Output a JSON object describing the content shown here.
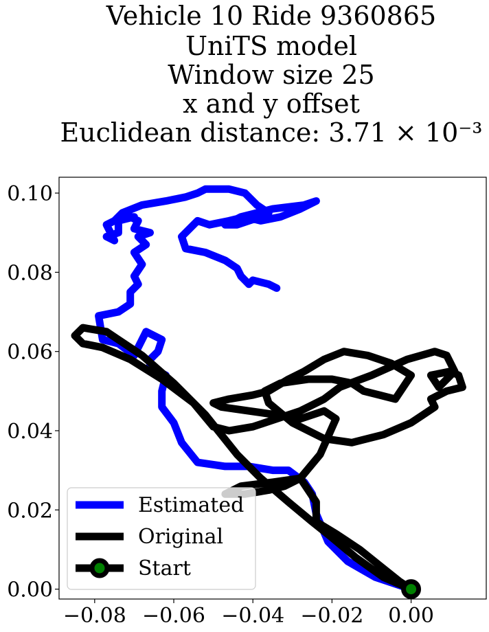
{
  "chart_data": {
    "type": "line",
    "title_lines": [
      "Vehicle 10 Ride 9360865",
      "UniTS model",
      "Window size 25",
      "x and y offset",
      "Euclidean distance: 3.71 × 10⁻³"
    ],
    "xlabel": "",
    "ylabel": "",
    "xlim": [
      -0.089,
      0.019
    ],
    "ylim": [
      -0.0025,
      0.104
    ],
    "xticks": [
      -0.08,
      -0.06,
      -0.04,
      -0.02,
      0.0
    ],
    "xtick_labels": [
      "−0.08",
      "−0.06",
      "−0.04",
      "−0.02",
      "0.00"
    ],
    "yticks": [
      0.0,
      0.02,
      0.04,
      0.06,
      0.08,
      0.1
    ],
    "ytick_labels": [
      "0.00",
      "0.02",
      "0.04",
      "0.06",
      "0.08",
      "0.10"
    ],
    "grid": false,
    "legend_position": "lower-left",
    "series": [
      {
        "name": "Estimated",
        "color": "#0000ff",
        "x": [
          0.0,
          -0.009,
          -0.016,
          -0.021,
          -0.024,
          -0.025,
          -0.027,
          -0.031,
          -0.035,
          -0.041,
          -0.047,
          -0.054,
          -0.058,
          -0.06,
          -0.063,
          -0.063,
          -0.062,
          -0.066,
          -0.066,
          -0.064,
          -0.063,
          -0.067,
          -0.07,
          -0.074,
          -0.078,
          -0.079,
          -0.074,
          -0.071,
          -0.071,
          -0.069,
          -0.07,
          -0.068,
          -0.07,
          -0.067,
          -0.069,
          -0.066,
          -0.07,
          -0.069,
          -0.071,
          -0.07,
          -0.074,
          -0.074,
          -0.077,
          -0.075,
          -0.077,
          -0.075,
          -0.073,
          -0.068,
          -0.062,
          -0.057,
          -0.054,
          -0.052,
          -0.046,
          -0.042,
          -0.039,
          -0.036,
          -0.038,
          -0.041,
          -0.044,
          -0.047,
          -0.043,
          -0.035,
          -0.027,
          -0.024,
          -0.028,
          -0.033,
          -0.038,
          -0.042,
          -0.046,
          -0.051,
          -0.054,
          -0.058,
          -0.057,
          -0.052,
          -0.047,
          -0.044,
          -0.043,
          -0.041,
          -0.04,
          -0.036,
          -0.034
        ],
        "y": [
          0.0,
          0.003,
          0.007,
          0.012,
          0.019,
          0.024,
          0.027,
          0.03,
          0.03,
          0.031,
          0.031,
          0.032,
          0.037,
          0.042,
          0.046,
          0.05,
          0.054,
          0.056,
          0.058,
          0.06,
          0.063,
          0.065,
          0.059,
          0.062,
          0.063,
          0.069,
          0.07,
          0.072,
          0.075,
          0.077,
          0.079,
          0.082,
          0.085,
          0.087,
          0.089,
          0.09,
          0.091,
          0.093,
          0.094,
          0.094,
          0.093,
          0.09,
          0.089,
          0.088,
          0.092,
          0.093,
          0.095,
          0.097,
          0.098,
          0.099,
          0.1,
          0.101,
          0.101,
          0.1,
          0.097,
          0.095,
          0.094,
          0.093,
          0.092,
          0.092,
          0.094,
          0.096,
          0.097,
          0.098,
          0.096,
          0.094,
          0.093,
          0.094,
          0.093,
          0.092,
          0.093,
          0.089,
          0.086,
          0.085,
          0.083,
          0.081,
          0.079,
          0.077,
          0.078,
          0.077,
          0.076
        ]
      },
      {
        "name": "Original",
        "color": "#000000",
        "x": [
          0.0,
          -0.007,
          -0.014,
          -0.02,
          -0.025,
          -0.031,
          -0.038,
          -0.044,
          -0.052,
          -0.06,
          -0.068,
          -0.074,
          -0.077,
          -0.083,
          -0.085,
          -0.083,
          -0.078,
          -0.071,
          -0.063,
          -0.055,
          -0.05,
          -0.046,
          -0.04,
          -0.034,
          -0.028,
          -0.022,
          -0.018,
          -0.01,
          -0.001,
          0.006,
          0.009,
          0.011,
          0.007,
          0.005,
          0.01,
          0.012,
          0.013,
          0.009,
          0.005,
          0.006,
          0.003,
          0.0,
          -0.007,
          -0.015,
          -0.022,
          -0.03,
          -0.036,
          -0.037,
          -0.033,
          -0.026,
          -0.02,
          -0.015,
          -0.012,
          -0.008,
          -0.004,
          -0.002,
          0.0,
          -0.005,
          -0.011,
          -0.017,
          -0.022,
          -0.027,
          -0.031,
          -0.036,
          -0.04,
          -0.046,
          -0.05,
          -0.048,
          -0.041,
          -0.034,
          -0.028,
          -0.022,
          -0.019,
          -0.023,
          -0.028,
          -0.032,
          -0.036,
          -0.042,
          -0.047,
          -0.043,
          -0.035,
          -0.028,
          -0.024,
          -0.024,
          -0.019,
          -0.013,
          -0.008,
          -0.003,
          0.0
        ],
        "y": [
          0.0,
          0.003,
          0.008,
          0.013,
          0.017,
          0.022,
          0.028,
          0.034,
          0.044,
          0.052,
          0.059,
          0.063,
          0.065,
          0.066,
          0.064,
          0.062,
          0.061,
          0.058,
          0.053,
          0.047,
          0.041,
          0.04,
          0.041,
          0.043,
          0.045,
          0.048,
          0.051,
          0.054,
          0.058,
          0.06,
          0.059,
          0.055,
          0.051,
          0.054,
          0.055,
          0.054,
          0.051,
          0.05,
          0.048,
          0.046,
          0.044,
          0.042,
          0.039,
          0.037,
          0.038,
          0.042,
          0.047,
          0.05,
          0.052,
          0.053,
          0.053,
          0.052,
          0.05,
          0.049,
          0.048,
          0.051,
          0.054,
          0.057,
          0.059,
          0.06,
          0.058,
          0.055,
          0.053,
          0.05,
          0.049,
          0.048,
          0.047,
          0.046,
          0.045,
          0.044,
          0.043,
          0.045,
          0.043,
          0.034,
          0.028,
          0.026,
          0.025,
          0.024,
          0.024,
          0.026,
          0.027,
          0.028,
          0.022,
          0.017,
          0.014,
          0.01,
          0.006,
          0.002,
          0.0
        ]
      }
    ],
    "start_point": {
      "name": "Start",
      "x": 0.0,
      "y": 0.0,
      "fill": "#008000",
      "edge": "#000000"
    },
    "legend": [
      {
        "label": "Estimated",
        "kind": "line",
        "color": "#0000ff"
      },
      {
        "label": "Original",
        "kind": "line",
        "color": "#000000"
      },
      {
        "label": "Start",
        "kind": "line-marker",
        "color": "#000000",
        "marker_fill": "#008000"
      }
    ]
  }
}
